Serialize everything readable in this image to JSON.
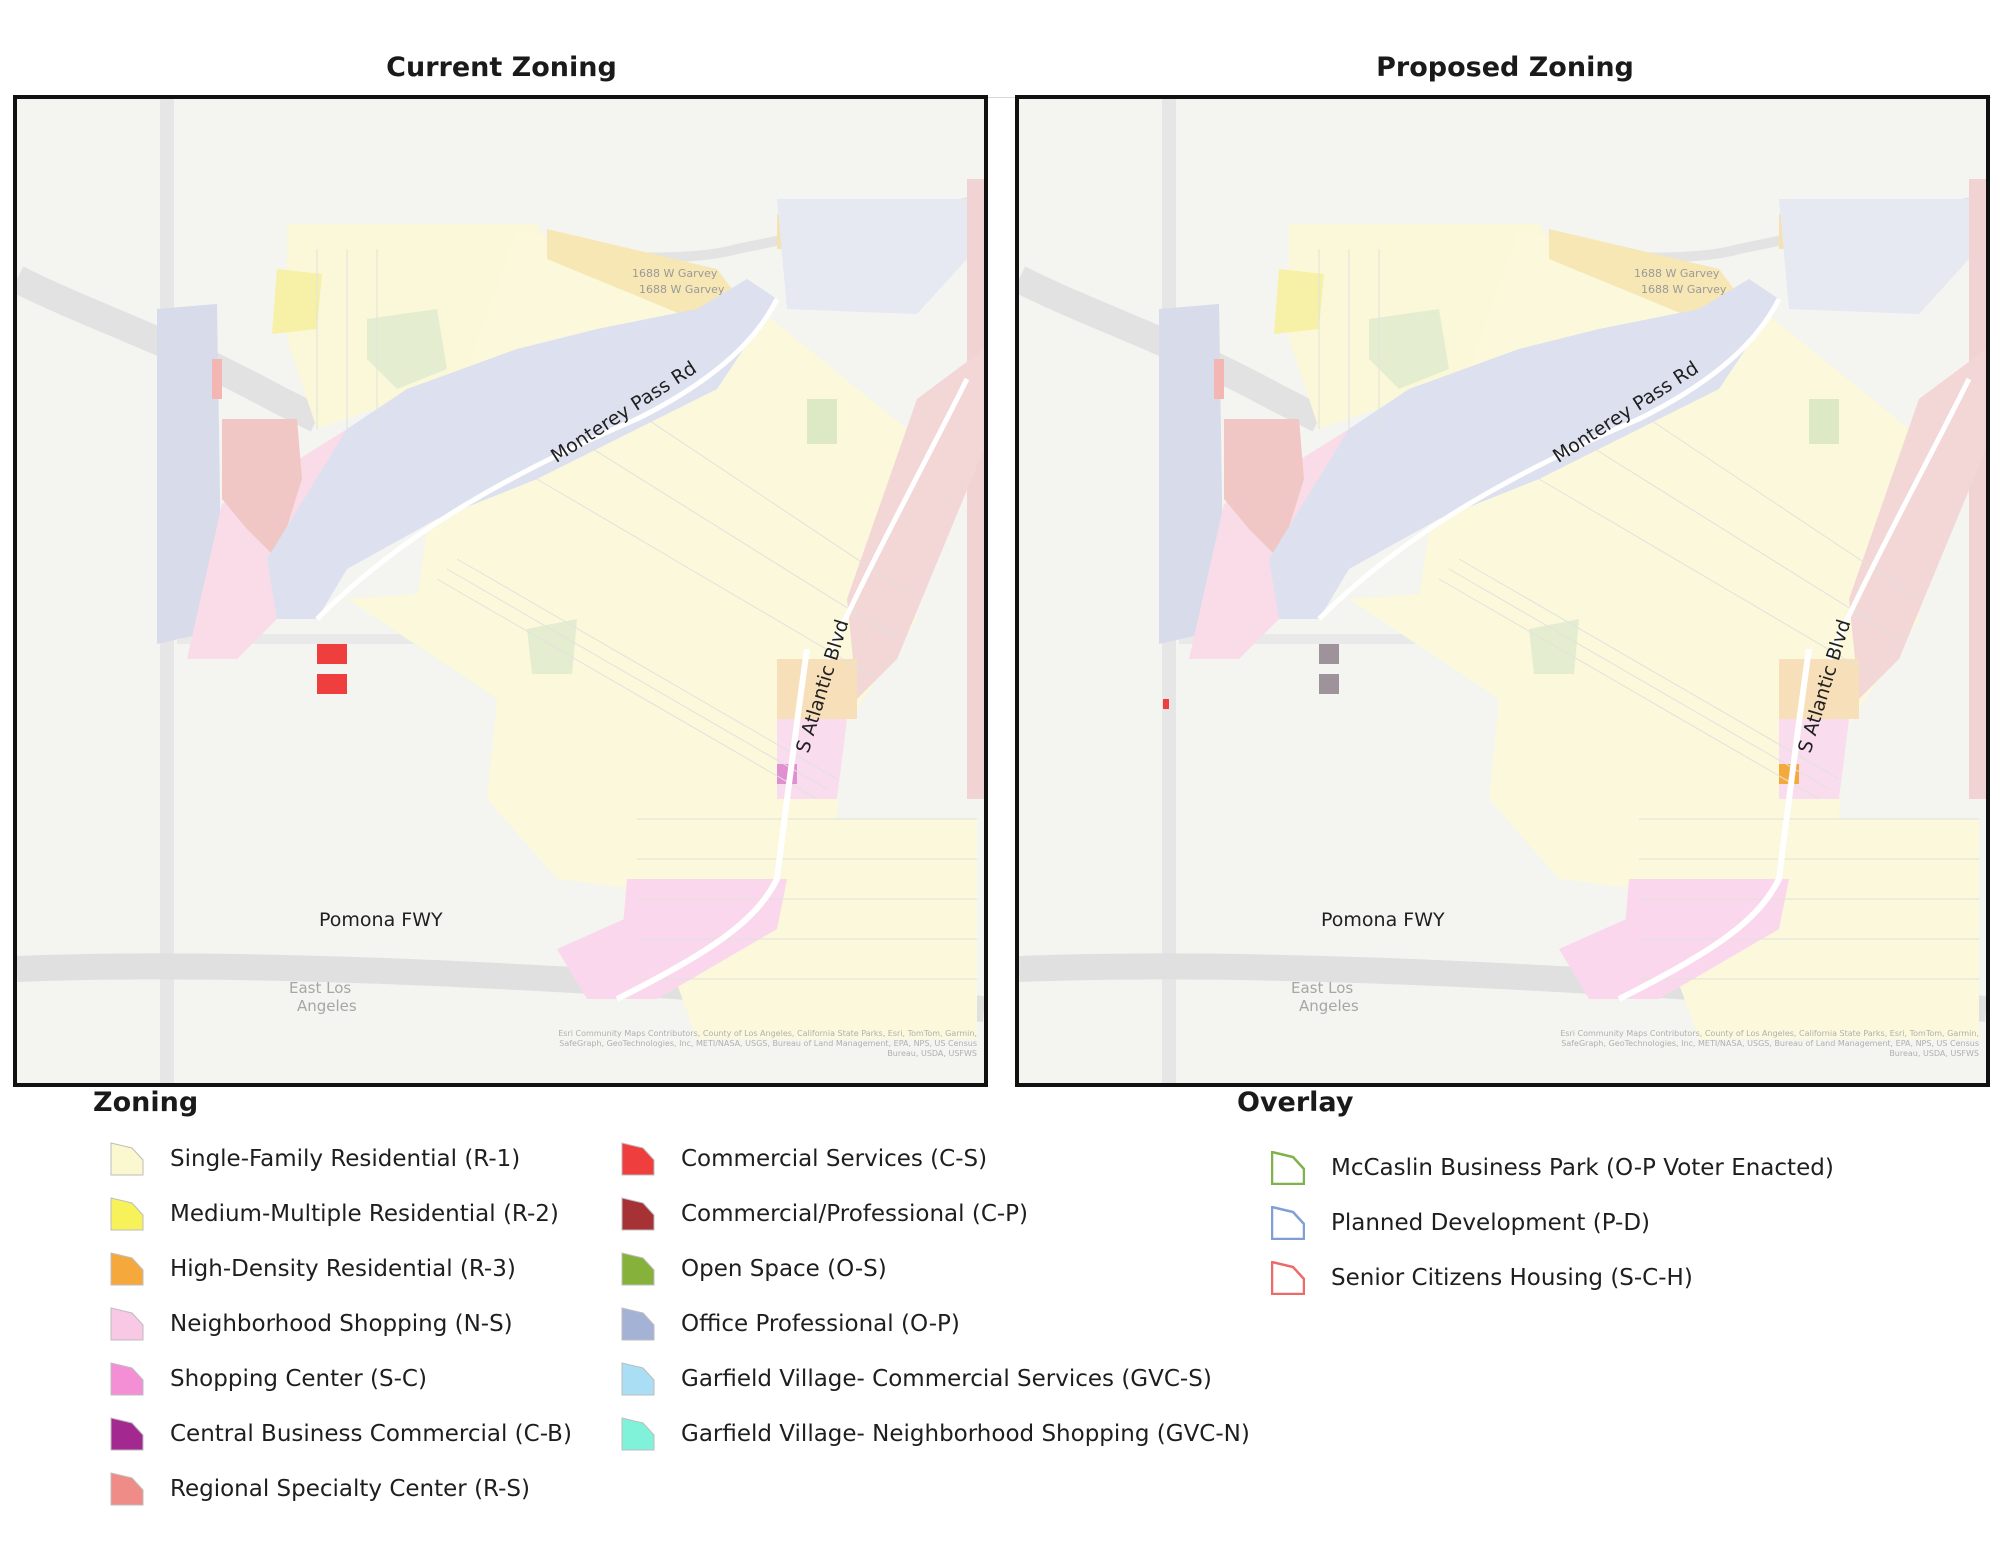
{
  "maps": {
    "current": {
      "title": "Current Zoning",
      "road_labels": {
        "monterey": "Monterey Pass Rd",
        "atlantic": "S Atlantic Blvd",
        "pomona": "Pomona FWY"
      },
      "faint_labels": {
        "east_la_1": "East Los",
        "east_la_2": "Angeles",
        "garvey_1": "1688 W Garvey",
        "garvey_2": "1688 W Garvey"
      },
      "attribution": "Esri Community Maps Contributors, County of Los Angeles, California State Parks, Esri, TomTom, Garmin, SafeGraph, GeoTechnologies, Inc, METI/NASA, USGS, Bureau of Land Management, EPA, NPS, US Census Bureau, USDA, USFWS"
    },
    "proposed": {
      "title": "Proposed Zoning",
      "road_labels": {
        "monterey": "Monterey Pass Rd",
        "atlantic": "S Atlantic Blvd",
        "pomona": "Pomona FWY"
      },
      "faint_labels": {
        "east_la_1": "East Los",
        "east_la_2": "Angeles",
        "garvey_1": "1688 W Garvey",
        "garvey_2": "1688 W Garvey"
      },
      "attribution": "Esri Community Maps Contributors, County of Los Angeles, California State Parks, Esri, TomTom, Garmin, SafeGraph, GeoTechnologies, Inc, METI/NASA, USGS, Bureau of Land Management, EPA, NPS, US Census Bureau, USDA, USFWS"
    }
  },
  "zoning_legend": {
    "heading": "Zoning",
    "items": [
      {
        "label": "Single-Family Residential (R-1)",
        "color": "#fbf8cf"
      },
      {
        "label": "Medium-Multiple Residential (R-2)",
        "color": "#f8f25a"
      },
      {
        "label": "High-Density Residential (R-3)",
        "color": "#f5a93c"
      },
      {
        "label": "Neighborhood Shopping (N-S)",
        "color": "#f9c8e4"
      },
      {
        "label": "Shopping Center (S-C)",
        "color": "#f48fd6"
      },
      {
        "label": "Central Business Commercial (C-B)",
        "color": "#a3288f"
      },
      {
        "label": "Regional Specialty Center (R-S)",
        "color": "#ef8c88"
      },
      {
        "label": "Commercial Services (C-S)",
        "color": "#ef3e3e"
      },
      {
        "label": "Commercial/Professional (C-P)",
        "color": "#a63236"
      },
      {
        "label": "Open Space (O-S)",
        "color": "#86b23c"
      },
      {
        "label": "Office Professional (O-P)",
        "color": "#a4b2d6"
      },
      {
        "label": "Garfield Village- Commercial Services (GVC-S)",
        "color": "#a9def4"
      },
      {
        "label": "Garfield Village- Neighborhood Shopping (GVC-N)",
        "color": "#7ff2d9"
      }
    ]
  },
  "overlay_legend": {
    "heading": "Overlay",
    "items": [
      {
        "label": "McCaslin Business Park (O-P Voter Enacted)",
        "color": "#7fb24a"
      },
      {
        "label": "Planned Development (P-D)",
        "color": "#7f9fd6"
      },
      {
        "label": "Senior Citizens Housing (S-C-H)",
        "color": "#ee6a6a"
      }
    ]
  }
}
